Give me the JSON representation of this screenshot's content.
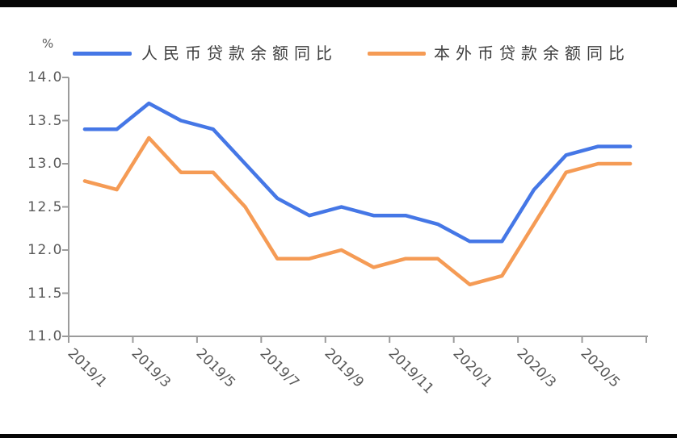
{
  "figure": {
    "unit_label": "%"
  },
  "chart_data": {
    "type": "line",
    "title": "",
    "xlabel": "",
    "ylabel": "%",
    "grid": false,
    "legend_position": "top",
    "ylim": [
      11.0,
      14.0
    ],
    "y_tick_labels": [
      "14.0",
      "13.5",
      "13.0",
      "12.5",
      "12.0",
      "11.5",
      "11.0"
    ],
    "x": [
      "2019/1",
      "2019/2",
      "2019/3",
      "2019/4",
      "2019/5",
      "2019/6",
      "2019/7",
      "2019/8",
      "2019/9",
      "2019/10",
      "2019/11",
      "2019/12",
      "2020/1",
      "2020/2",
      "2020/3",
      "2020/4",
      "2020/5",
      "2020/6"
    ],
    "x_tick_labels": [
      "2019/1",
      "2019/3",
      "2019/5",
      "2019/7",
      "2019/9",
      "2019/11",
      "2020/1",
      "2020/3",
      "2020/5"
    ],
    "axis_color": "#9B9B9B",
    "label_color": "#595959",
    "series": [
      {
        "name": "人民币贷款余额同比",
        "color": "#4577E6",
        "values": [
          13.4,
          13.4,
          13.7,
          13.5,
          13.4,
          13.0,
          12.6,
          12.4,
          12.5,
          12.4,
          12.4,
          12.3,
          12.1,
          12.1,
          12.7,
          13.1,
          13.2,
          13.2
        ]
      },
      {
        "name": "本外币贷款余额同比",
        "color": "#F59B55",
        "values": [
          12.8,
          12.7,
          13.3,
          12.9,
          12.9,
          12.5,
          11.9,
          11.9,
          12.0,
          11.8,
          11.9,
          11.9,
          11.6,
          11.7,
          12.3,
          12.9,
          13.0,
          13.0
        ]
      }
    ]
  }
}
